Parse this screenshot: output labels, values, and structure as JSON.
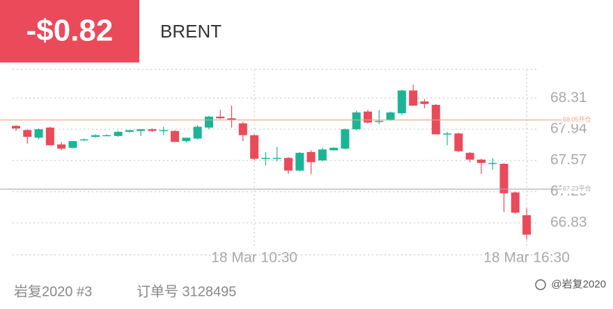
{
  "header": {
    "pnl": "-$0.82",
    "symbol": "BRENT"
  },
  "chart_data": {
    "type": "candlestick",
    "categories": [
      null,
      null,
      null,
      null,
      null,
      null,
      null,
      null,
      null,
      null,
      null,
      null,
      null,
      null,
      null,
      null,
      null,
      null,
      null,
      null,
      null,
      "18 Mar 10:30",
      null,
      null,
      null,
      null,
      null,
      null,
      null,
      null,
      null,
      null,
      null,
      null,
      null,
      null,
      null,
      null,
      null,
      null,
      null,
      null,
      null,
      null,
      null,
      "18 Mar 16:30"
    ],
    "open": [
      67.98,
      67.93,
      67.84,
      67.96,
      67.76,
      67.72,
      67.81,
      67.85,
      67.87,
      67.86,
      67.91,
      67.92,
      67.94,
      67.93,
      67.92,
      67.8,
      67.83,
      67.96,
      68.09,
      68.07,
      68.01,
      67.87,
      67.6,
      67.6,
      67.6,
      67.45,
      67.67,
      67.57,
      67.69,
      67.71,
      67.94,
      68.15,
      68.04,
      68.05,
      68.13,
      68.4,
      68.27,
      68.23,
      67.89,
      67.89,
      67.66,
      67.58,
      67.54,
      67.53,
      67.19,
      66.92
    ],
    "high": [
      67.99,
      67.94,
      67.95,
      67.97,
      67.79,
      67.8,
      67.83,
      67.88,
      67.88,
      67.92,
      67.93,
      67.94,
      67.95,
      67.97,
      67.93,
      67.84,
      67.99,
      68.1,
      68.17,
      68.22,
      68.03,
      67.88,
      67.67,
      67.73,
      67.61,
      67.67,
      67.69,
      67.72,
      67.73,
      67.95,
      68.16,
      68.17,
      68.17,
      68.15,
      68.41,
      68.47,
      68.3,
      68.24,
      67.91,
      67.9,
      67.67,
      67.59,
      67.6,
      67.54,
      67.2,
      67.0
    ],
    "low": [
      67.92,
      67.77,
      67.82,
      67.75,
      67.69,
      67.71,
      67.8,
      67.84,
      67.86,
      67.85,
      67.9,
      67.86,
      67.91,
      67.87,
      67.79,
      67.78,
      67.82,
      67.94,
      68.06,
      67.96,
      67.8,
      67.57,
      67.51,
      67.56,
      67.41,
      67.44,
      67.41,
      67.56,
      67.69,
      67.7,
      67.93,
      68.01,
      68.0,
      68.04,
      68.11,
      68.22,
      68.19,
      67.88,
      67.75,
      67.67,
      67.55,
      67.41,
      67.46,
      66.96,
      66.94,
      66.63
    ],
    "close": [
      67.95,
      67.85,
      67.94,
      67.75,
      67.71,
      67.8,
      67.82,
      67.87,
      67.87,
      67.91,
      67.93,
      67.94,
      67.92,
      67.93,
      67.79,
      67.84,
      67.97,
      68.09,
      68.07,
      68.05,
      67.87,
      67.59,
      67.6,
      67.6,
      67.45,
      67.66,
      67.55,
      67.7,
      67.72,
      67.94,
      68.14,
      68.02,
      68.04,
      68.14,
      68.4,
      68.22,
      68.24,
      67.88,
      67.89,
      67.68,
      67.58,
      67.54,
      67.54,
      67.18,
      66.95,
      66.69
    ],
    "colors": {
      "up": "#1bb596",
      "down": "#ea4a5a"
    },
    "ylim": [
      66.45,
      68.65
    ],
    "yticks": [
      68.31,
      67.94,
      67.57,
      {
        "value": 67.2,
        "label": "67.20"
      },
      66.83
    ],
    "grid": true,
    "reference_lines": [
      {
        "value": 68.05,
        "label": "68.05开仓",
        "color": "#f4a07a"
      },
      {
        "value": 67.23,
        "label": "67.23平仓",
        "color": "#aaaaaa"
      }
    ]
  },
  "footer": {
    "account": "岩复2020 #3",
    "order": "订单号 3128495",
    "watermark": "@岩复2020"
  }
}
